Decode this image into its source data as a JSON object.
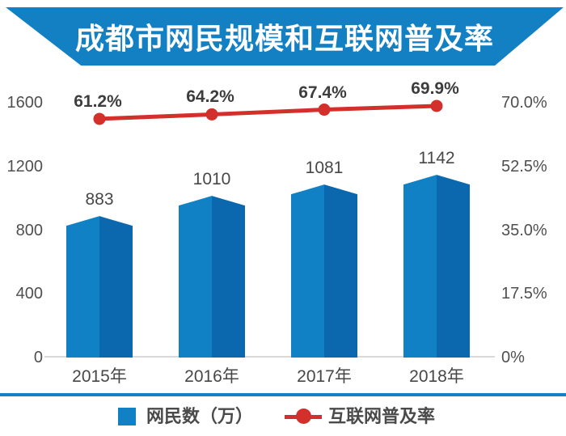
{
  "title": "成都市网民规模和互联网普及率",
  "chart_data": {
    "type": "bar+line",
    "categories": [
      "2015年",
      "2016年",
      "2017年",
      "2018年"
    ],
    "series": [
      {
        "name": "网民数（万）",
        "type": "bar",
        "axis": "left",
        "values": [
          883,
          1010,
          1081,
          1142
        ],
        "value_labels": [
          "883",
          "1010",
          "1081",
          "1142"
        ]
      },
      {
        "name": "互联网普及率",
        "type": "line",
        "axis": "right",
        "values": [
          61.2,
          64.2,
          67.4,
          69.9
        ],
        "value_labels": [
          "61.2%",
          "64.2%",
          "67.4%",
          "69.9%"
        ]
      }
    ],
    "left_axis": {
      "ticks": [
        "0",
        "400",
        "800",
        "1200",
        "1600"
      ],
      "range": [
        0,
        1600
      ]
    },
    "right_axis": {
      "ticks": [
        "0%",
        "17.5%",
        "35.0%",
        "52.5%",
        "70.0%"
      ],
      "range": [
        0,
        70
      ]
    },
    "grid": "baseline-only",
    "legend_position": "bottom"
  },
  "colors": {
    "banner_blue": "#1480c4",
    "bar_left_face": "#1181c6",
    "bar_right_face": "#0b67ae",
    "line_red": "#d32f2b",
    "divider_blue": "#1480c4",
    "baseline_gray": "#d9d9d9"
  }
}
